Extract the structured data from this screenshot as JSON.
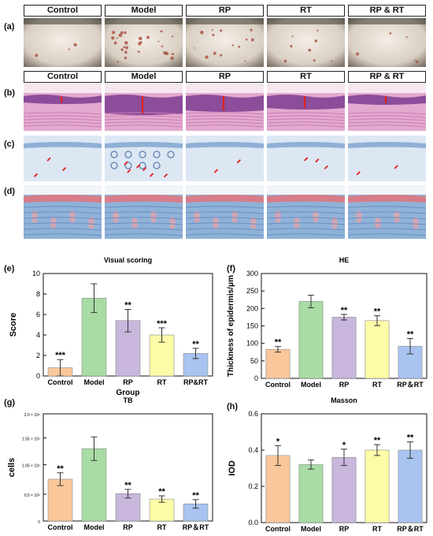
{
  "figure": {
    "panel_labels": [
      "(a)",
      "(b)",
      "(c)",
      "(d)",
      "(e)",
      "(f)",
      "(g)",
      "(h)"
    ],
    "group_headers": [
      "Control",
      "Model",
      "RP",
      "RT",
      "RP & RT"
    ]
  },
  "colors": {
    "control": "#f9c79a",
    "model": "#a8dca4",
    "rp": "#c8b6dc",
    "rt": "#fdfba8",
    "rprt": "#a9c4f0",
    "he_bg": "#e3a9cf",
    "tb_bg": "#dce7f3",
    "masson_bg": "#8fb2d8"
  },
  "chart_data": [
    {
      "id": "e",
      "type": "bar",
      "title": "Visual scoring",
      "xlabel": "Group",
      "ylabel": "Score",
      "categories": [
        "Control",
        "Model",
        "RP",
        "RT",
        "RP&RT"
      ],
      "values": [
        0.8,
        7.6,
        5.4,
        4.0,
        2.2
      ],
      "errors": [
        0.8,
        1.4,
        1.1,
        0.7,
        0.5
      ],
      "significance": [
        "***",
        "",
        "**",
        "***",
        "**"
      ],
      "ylim": [
        0,
        10
      ],
      "yticks": [
        "0",
        "2",
        "4",
        "6",
        "8",
        "10"
      ],
      "grid": false
    },
    {
      "id": "f",
      "type": "bar",
      "title": "HE",
      "xlabel": "",
      "ylabel": "Thickness of epidermis/μm",
      "categories": [
        "Control",
        "Model",
        "RP",
        "RT",
        "RP＆RT"
      ],
      "values": [
        83,
        220,
        175,
        165,
        92
      ],
      "errors": [
        8,
        18,
        8,
        14,
        22
      ],
      "significance": [
        "**",
        "",
        "**",
        "**",
        "**"
      ],
      "ylim": [
        0,
        300
      ],
      "yticks": [
        "0",
        "50",
        "100",
        "150",
        "200",
        "250",
        "300"
      ],
      "grid": false
    },
    {
      "id": "g",
      "type": "bar",
      "title": "TB",
      "xlabel": "",
      "ylabel": "cells",
      "categories": [
        "Control",
        "Model",
        "RP",
        "RT",
        "RP＆RT"
      ],
      "values": [
        78000,
        135000,
        51000,
        41000,
        32000
      ],
      "errors": [
        12000,
        22000,
        8000,
        6000,
        8000
      ],
      "significance": [
        "**",
        "",
        "**",
        "**",
        "**"
      ],
      "ylim": [
        0,
        200000
      ],
      "ytick_values": [
        0,
        50000,
        105000,
        155000,
        200000
      ],
      "yticks": [
        "0",
        "0.5 × 10⁵",
        "1.05 × 10⁵",
        "1.55 × 10⁵",
        "2.0 × 10⁵"
      ],
      "grid": false
    },
    {
      "id": "h",
      "type": "bar",
      "title": "Masson",
      "xlabel": "",
      "ylabel": "IOD",
      "categories": [
        "Control",
        "Model",
        "RP",
        "RT",
        "RP＆RT"
      ],
      "values": [
        0.37,
        0.32,
        0.36,
        0.4,
        0.4
      ],
      "errors": [
        0.055,
        0.025,
        0.045,
        0.03,
        0.045
      ],
      "significance": [
        "*",
        "",
        "*",
        "**",
        "**"
      ],
      "ylim": [
        0,
        0.6
      ],
      "yticks": [
        "0.0",
        "0.2",
        "0.4",
        "0.6"
      ],
      "grid": false
    }
  ]
}
